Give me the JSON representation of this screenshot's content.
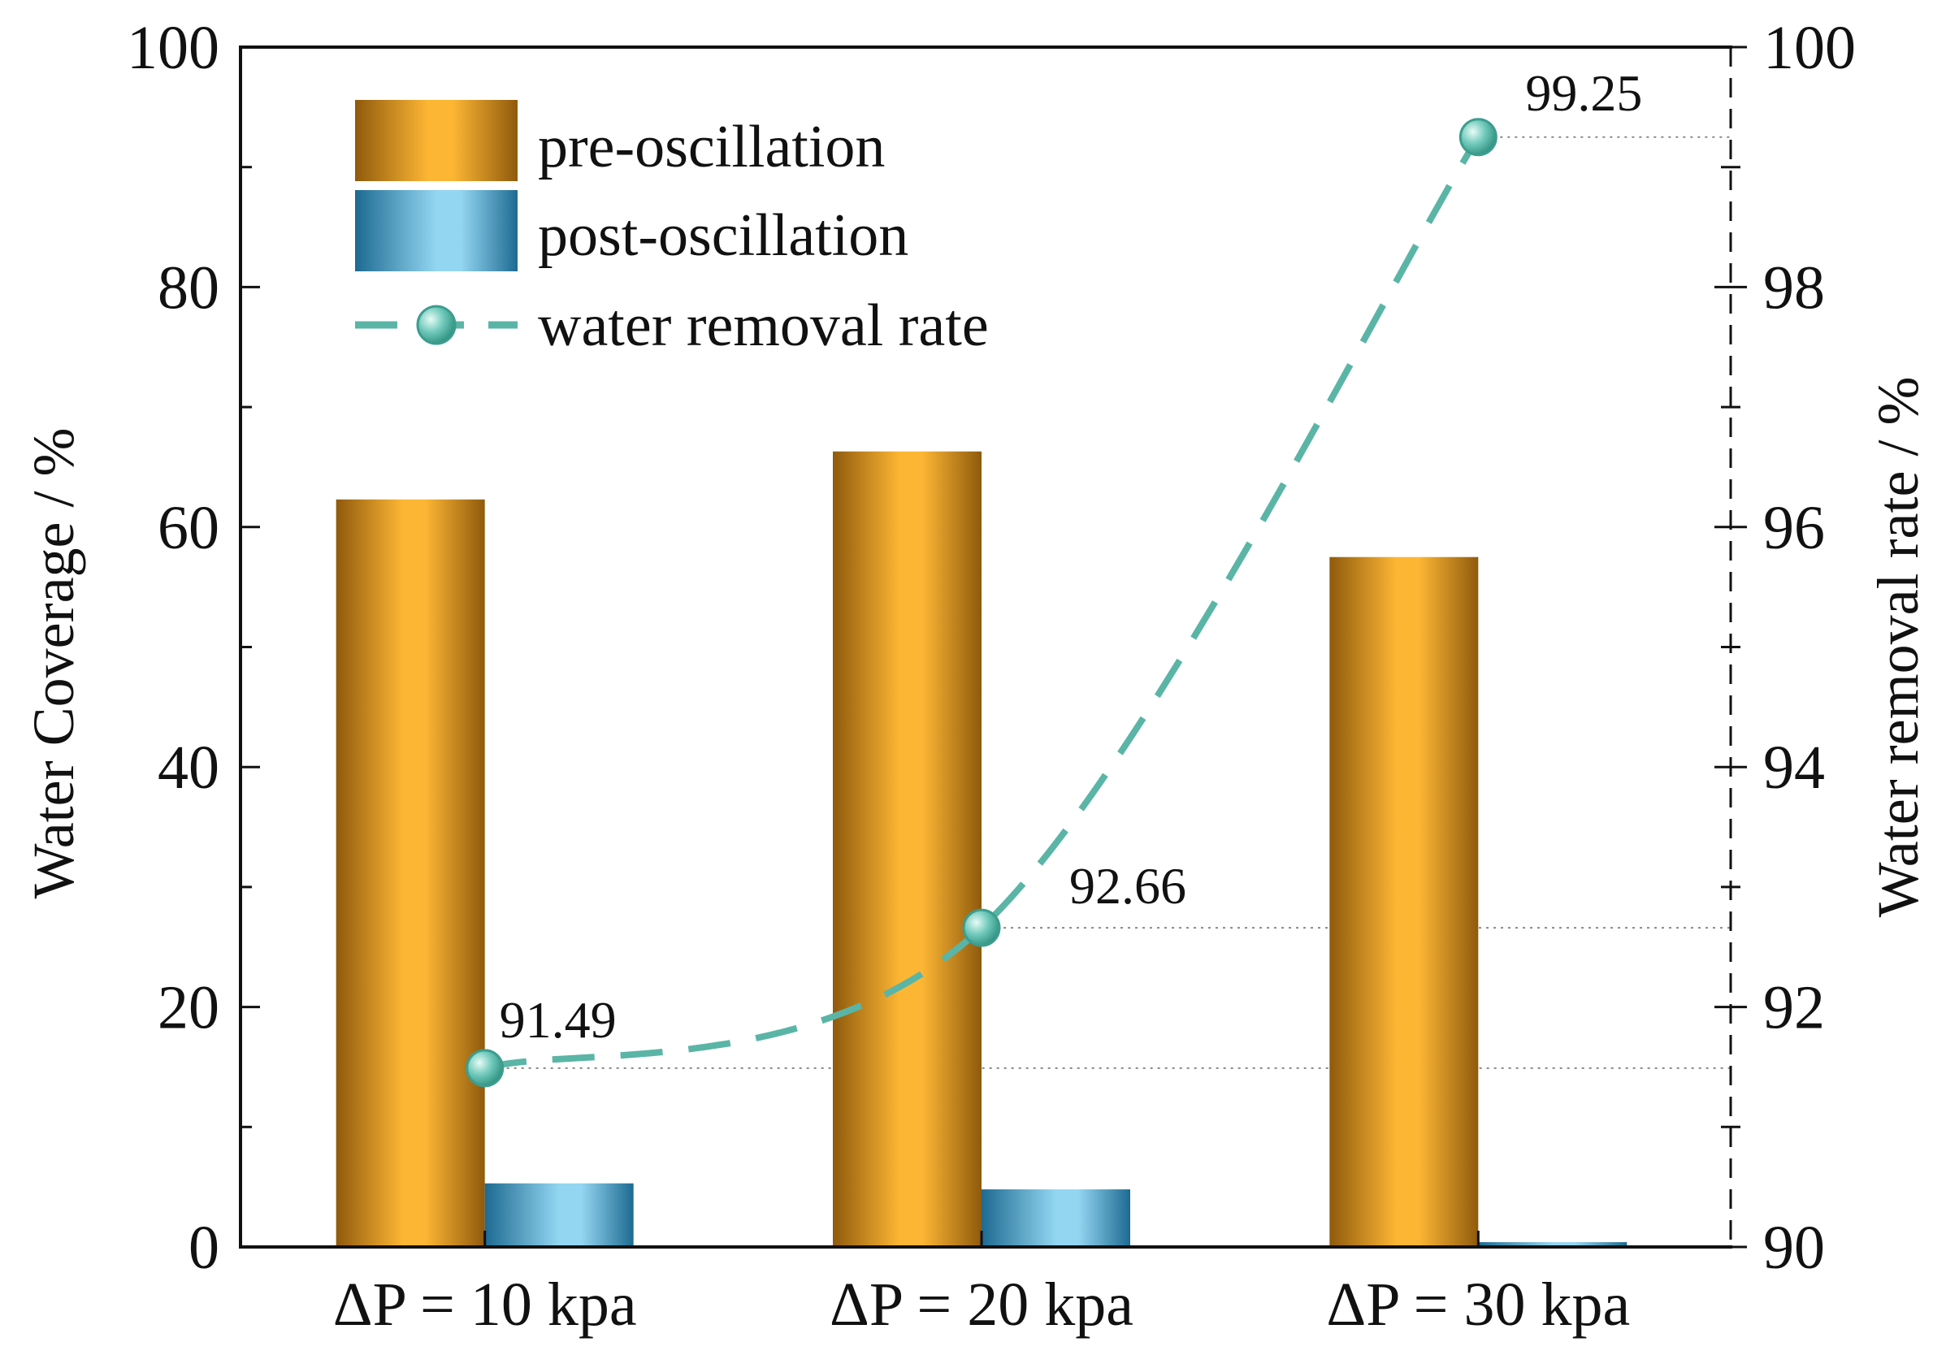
{
  "chart_data": {
    "type": "bar",
    "categories": [
      "ΔP = 10 kpa",
      "ΔP = 20 kpa",
      "ΔP = 30 kpa"
    ],
    "series": [
      {
        "name": "pre-oscillation",
        "kind": "bar",
        "axis": "left",
        "values": [
          62.3,
          66.3,
          57.5
        ]
      },
      {
        "name": "post-oscillation",
        "kind": "bar",
        "axis": "left",
        "values": [
          5.3,
          4.8,
          0.4
        ]
      },
      {
        "name": "water removal rate",
        "kind": "line",
        "axis": "right",
        "values": [
          91.49,
          92.66,
          99.25
        ]
      }
    ],
    "data_labels": [
      "91.49",
      "92.66",
      "99.25"
    ],
    "xlabel": "",
    "ylabel": "Water Coverage / %",
    "y2label": "Water removal rate / %",
    "ylim": [
      0,
      100
    ],
    "y2lim": [
      90,
      100
    ],
    "yticks": [
      0,
      20,
      40,
      60,
      80,
      100
    ],
    "y2ticks": [
      90,
      92,
      94,
      96,
      98,
      100
    ],
    "grid": false,
    "legend_position": "top-left",
    "colors": {
      "pre_dark": "#8f5a0c",
      "pre_light": "#fdb634",
      "post_dark": "#1d6a91",
      "post_light": "#93d6f2",
      "line": "#5ab5a6",
      "axis": "#111111",
      "ref_line": "#888888"
    }
  }
}
